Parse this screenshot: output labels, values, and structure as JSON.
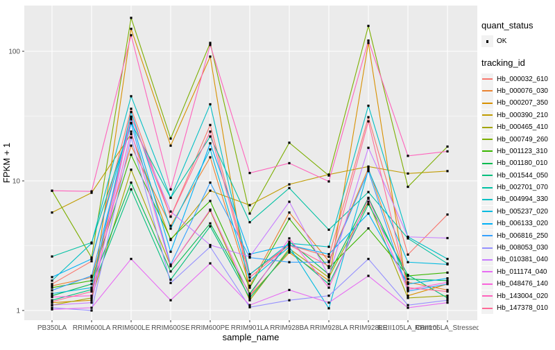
{
  "legend": {
    "quant_status_title": "quant_status",
    "ok_label": "OK",
    "ok_marker": "black-square-point",
    "tracking_id_title": "tracking_id"
  },
  "chart_data": {
    "type": "line",
    "title": "",
    "xlabel": "sample_name",
    "ylabel": "FPKM + 1",
    "y_scale": "log10",
    "ylim": [
      0.85,
      225
    ],
    "y_ticks": [
      1,
      10,
      100
    ],
    "y_tick_labels": [
      "1",
      "10",
      "100"
    ],
    "y_minor_ticks": [
      3.1623,
      31.623
    ],
    "grid": "white major and minor on gray panel",
    "legend_position": "right",
    "panel_background": "#EBEBEB",
    "grid_color": "#FFFFFF",
    "tick_text_color": "#4D4D4D",
    "point_marker": "small black square",
    "categories": [
      "PB350LA",
      "RRIM600LA",
      "RRIM600LE",
      "RRIM600SE",
      "RRIM600PE",
      "RRIM901LA",
      "RRIM928BA",
      "RRIM928LA",
      "RRIM928LE",
      "RRII105LA_Control",
      "RRII105LA_Stressed"
    ],
    "series": [
      {
        "name": "Hb_000032_610",
        "color": "#F8766D",
        "values": [
          1.6,
          2.4,
          36,
          5.3,
          27,
          1.9,
          3.2,
          2.6,
          31,
          2.7,
          5.5
        ]
      },
      {
        "name": "Hb_000076_030",
        "color": "#EA8331",
        "values": [
          1.55,
          1.8,
          18.7,
          4.5,
          15.2,
          1.55,
          5.7,
          2.4,
          12.5,
          1.65,
          1.44
        ]
      },
      {
        "name": "Hb_000207_350",
        "color": "#D89000",
        "values": [
          1.15,
          1.2,
          149,
          18.7,
          91,
          1.3,
          2.8,
          1.7,
          116,
          1.3,
          1.6
        ]
      },
      {
        "name": "Hb_000390_210",
        "color": "#C09B00",
        "values": [
          5.7,
          8.1,
          23,
          3.5,
          8.4,
          6.5,
          9.4,
          11.2,
          12.9,
          11.4,
          11.9
        ]
      },
      {
        "name": "Hb_000465_410",
        "color": "#A3A500",
        "values": [
          1.1,
          1.25,
          12.2,
          2.2,
          5.9,
          1.2,
          3.0,
          1.8,
          6.9,
          1.25,
          1.3
        ]
      },
      {
        "name": "Hb_000749_260",
        "color": "#7CAE00",
        "values": [
          8.4,
          2.56,
          181,
          21.2,
          116,
          5.6,
          19.7,
          11.0,
          157,
          9.0,
          18.4
        ]
      },
      {
        "name": "Hb_001123_310",
        "color": "#39B600",
        "values": [
          1.5,
          1.7,
          15.9,
          3.56,
          7.0,
          1.5,
          5.1,
          2.13,
          4.3,
          1.85,
          1.96
        ]
      },
      {
        "name": "Hb_001180_010",
        "color": "#00BB4E",
        "values": [
          1.3,
          1.6,
          9.7,
          2.0,
          4.7,
          1.35,
          3.4,
          1.9,
          7.4,
          1.75,
          1.7
        ]
      },
      {
        "name": "Hb_001544_050",
        "color": "#00BF7D",
        "values": [
          1.2,
          1.45,
          8.6,
          1.73,
          4.46,
          1.25,
          2.9,
          1.6,
          6.6,
          1.88,
          1.25
        ]
      },
      {
        "name": "Hb_002701_070",
        "color": "#00C1A3",
        "values": [
          2.61,
          3.34,
          28,
          7.4,
          22,
          4.8,
          8.8,
          4.2,
          8.2,
          3.6,
          2.3
        ]
      },
      {
        "name": "Hb_004994_330",
        "color": "#00BFC4",
        "values": [
          1.7,
          3.3,
          45,
          7.4,
          39,
          1.9,
          3.3,
          3.1,
          38,
          3.7,
          2.5
        ]
      },
      {
        "name": "Hb_005237_020",
        "color": "#00BAE0",
        "values": [
          1.35,
          1.5,
          34,
          4.28,
          17.5,
          1.7,
          3.1,
          1.04,
          12.2,
          2.36,
          2.27
        ]
      },
      {
        "name": "Hb_006133_020",
        "color": "#00B0F6",
        "values": [
          1.81,
          2.5,
          29.9,
          2.84,
          19.5,
          2.72,
          3.2,
          2.72,
          5.6,
          1.6,
          1.77
        ]
      },
      {
        "name": "Hb_006816_250",
        "color": "#35A2FF",
        "values": [
          1.43,
          1.85,
          27.8,
          2.26,
          9.7,
          2.56,
          2.36,
          2.36,
          11.9,
          1.41,
          1.6
        ]
      },
      {
        "name": "Hb_008053_030",
        "color": "#9590FF",
        "values": [
          1.05,
          1.0,
          21.6,
          1.63,
          3.1,
          1.06,
          1.2,
          1.3,
          2.5,
          1.1,
          1.2
        ]
      },
      {
        "name": "Hb_010381_040",
        "color": "#C77CFF",
        "values": [
          1.1,
          1.15,
          31,
          5.8,
          3.2,
          2.6,
          6.9,
          1.85,
          18,
          3.7,
          3.62
        ]
      },
      {
        "name": "Hb_011174_040",
        "color": "#E76BF3",
        "values": [
          1.02,
          1.05,
          2.5,
          1.2,
          2.31,
          1.1,
          1.44,
          1.15,
          1.85,
          1.05,
          1.15
        ]
      },
      {
        "name": "Hb_048476_140",
        "color": "#FA62DB",
        "values": [
          1.27,
          1.3,
          24,
          2.2,
          6.0,
          1.3,
          3.6,
          1.5,
          7.3,
          1.45,
          1.65
        ]
      },
      {
        "name": "Hb_143004_020",
        "color": "#FF62BC",
        "values": [
          8.4,
          8.3,
          133,
          8.6,
          112,
          11.5,
          13.7,
          9.9,
          121,
          15.6,
          16.9
        ]
      },
      {
        "name": "Hb_147378_010",
        "color": "#FF6A98",
        "values": [
          1.17,
          1.4,
          31.3,
          5.3,
          24,
          1.8,
          3.2,
          2.2,
          28.8,
          1.5,
          1.4
        ]
      }
    ]
  }
}
